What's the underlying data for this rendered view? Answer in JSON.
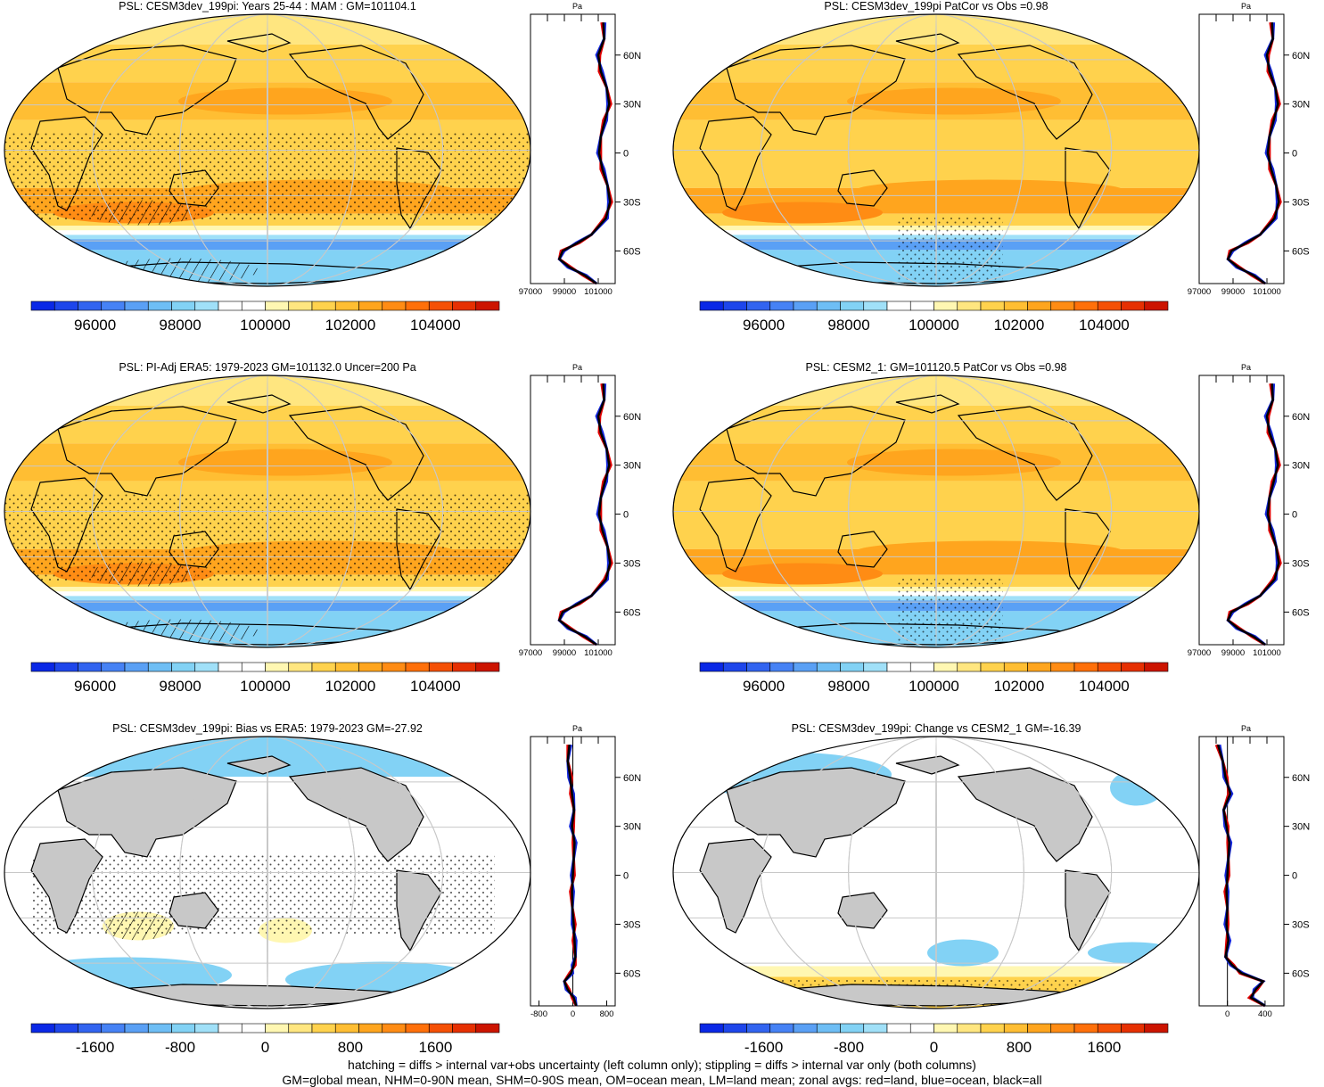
{
  "palette": {
    "pos": [
      "#fff7b2",
      "#ffe680",
      "#ffd24d",
      "#ffbe33",
      "#ffa51e",
      "#ff8c14",
      "#ff700a",
      "#f55005",
      "#e63002",
      "#cc1400"
    ],
    "neg": [
      "#0a28e6",
      "#1e46eb",
      "#3264f0",
      "#4682f5",
      "#5aa0f5",
      "#6ebef5",
      "#82d2f5",
      "#a0e0f8"
    ],
    "land": "#c8c8c8",
    "zonal_colors": {
      "land": "#e00000",
      "ocean": "#1428dc",
      "all": "#000000"
    }
  },
  "panels": [
    {
      "id": "model-mean",
      "title": "PSL: CESM3dev_199pi: Years 25-44 : MAM : GM=101104.1",
      "kind": "mean",
      "colorbar": {
        "min": 94500,
        "max": 105500,
        "labels": [
          "96000",
          "98000",
          "100000",
          "102000",
          "104000"
        ],
        "label_values": [
          96000,
          98000,
          100000,
          102000,
          104000
        ]
      },
      "zonal": {
        "ticks": [
          "97000",
          "99000",
          "101000"
        ],
        "tick_values": [
          97000,
          99000,
          101000
        ],
        "units": "Pa",
        "xlim": [
          97000,
          102000
        ]
      }
    },
    {
      "id": "model-patcor",
      "title": "PSL: CESM3dev_199pi PatCor vs Obs =0.98",
      "kind": "mean",
      "colorbar": {
        "min": 94500,
        "max": 105500,
        "labels": [
          "96000",
          "98000",
          "100000",
          "102000",
          "104000"
        ],
        "label_values": [
          96000,
          98000,
          100000,
          102000,
          104000
        ]
      },
      "zonal": {
        "ticks": [
          "97000",
          "99000",
          "101000"
        ],
        "tick_values": [
          97000,
          99000,
          101000
        ],
        "units": "Pa",
        "xlim": [
          97000,
          102000
        ]
      }
    },
    {
      "id": "obs-era5",
      "title": "PSL: PI-Adj ERA5: 1979-2023 GM=101132.0 Uncer=200 Pa",
      "kind": "mean",
      "colorbar": {
        "min": 94500,
        "max": 105500,
        "labels": [
          "96000",
          "98000",
          "100000",
          "102000",
          "104000"
        ],
        "label_values": [
          96000,
          98000,
          100000,
          102000,
          104000
        ]
      },
      "zonal": {
        "ticks": [
          "97000",
          "99000",
          "101000"
        ],
        "tick_values": [
          97000,
          99000,
          101000
        ],
        "units": "Pa",
        "xlim": [
          97000,
          102000
        ]
      }
    },
    {
      "id": "cesm2-1",
      "title": "PSL: CESM2_1: GM=101120.5 PatCor vs Obs =0.98",
      "kind": "mean",
      "colorbar": {
        "min": 94500,
        "max": 105500,
        "labels": [
          "96000",
          "98000",
          "100000",
          "102000",
          "104000"
        ],
        "label_values": [
          96000,
          98000,
          100000,
          102000,
          104000
        ]
      },
      "zonal": {
        "ticks": [
          "97000",
          "99000",
          "101000"
        ],
        "tick_values": [
          97000,
          99000,
          101000
        ],
        "units": "Pa",
        "xlim": [
          97000,
          102000
        ]
      }
    },
    {
      "id": "bias",
      "title": "PSL: CESM3dev_199pi: Bias vs ERA5: 1979-2023 GM=-27.92",
      "kind": "diff",
      "colorbar": {
        "min": -2200,
        "max": 2200,
        "labels": [
          "-1600",
          "-800",
          "0",
          "800",
          "1600"
        ],
        "label_values": [
          -1600,
          -800,
          0,
          800,
          1600
        ]
      },
      "zonal": {
        "ticks": [
          "-800",
          "0",
          "800"
        ],
        "tick_values": [
          -800,
          0,
          800
        ],
        "units": "Pa",
        "xlim": [
          -1000,
          1000
        ]
      }
    },
    {
      "id": "change",
      "title": "PSL: CESM3dev_199pi: Change vs CESM2_1 GM=-16.39",
      "kind": "diff",
      "colorbar": {
        "min": -2200,
        "max": 2200,
        "labels": [
          "-1600",
          "-800",
          "0",
          "800",
          "1600"
        ],
        "label_values": [
          -1600,
          -800,
          0,
          800,
          1600
        ]
      },
      "zonal": {
        "ticks": [
          "0",
          "400"
        ],
        "tick_values": [
          0,
          400
        ],
        "units": "Pa",
        "xlim": [
          -300,
          600
        ]
      }
    }
  ],
  "lat_labels": [
    "60N",
    "30N",
    "0",
    "30S",
    "60S"
  ],
  "chart_data": {
    "type": "heatmap",
    "variable": "PSL",
    "season": "MAM",
    "maps": [
      {
        "title": "PSL: CESM3dev_199pi: Years 25-44 : MAM : GM=101104.1",
        "global_mean": 101104.1
      },
      {
        "title": "PSL: CESM3dev_199pi PatCor vs Obs =0.98",
        "pattern_correlation": 0.98
      },
      {
        "title": "PSL: PI-Adj ERA5: 1979-2023 GM=101132.0 Uncer=200 Pa",
        "global_mean": 101132.0,
        "uncertainty_pa": 200
      },
      {
        "title": "PSL: CESM2_1: GM=101120.5 PatCor vs Obs =0.98",
        "global_mean": 101120.5,
        "pattern_correlation": 0.98
      },
      {
        "title": "PSL: CESM3dev_199pi: Bias vs ERA5: 1979-2023 GM=-27.92",
        "global_mean": -27.92
      },
      {
        "title": "PSL: CESM3dev_199pi: Change vs CESM2_1 GM=-16.39",
        "global_mean": -16.39
      }
    ],
    "zonal_mean_lat": [
      80,
      70,
      60,
      50,
      40,
      30,
      20,
      10,
      0,
      -10,
      -20,
      -30,
      -40,
      -50,
      -55,
      -60,
      -65,
      -70,
      -75,
      -80
    ],
    "zonal_mean_all": [
      101300,
      101350,
      101000,
      101150,
      101500,
      101650,
      101400,
      101150,
      101050,
      101250,
      101550,
      101700,
      101450,
      100600,
      99800,
      98900,
      98700,
      99300,
      100200,
      100900
    ],
    "zonal_bias_all": [
      -80,
      -120,
      -60,
      -20,
      30,
      -20,
      40,
      20,
      0,
      -20,
      -10,
      20,
      40,
      60,
      20,
      -40,
      -200,
      -120,
      20,
      80
    ],
    "zonal_change_all": [
      -100,
      -50,
      -20,
      30,
      -40,
      -10,
      20,
      10,
      0,
      -10,
      0,
      -10,
      10,
      -20,
      50,
      150,
      380,
      300,
      250,
      400
    ]
  },
  "caption": {
    "line1": "hatching = diffs > internal var+obs uncertainty (left column only); stippling = diffs > internal var only (both columns)",
    "line2": "GM=global mean, NHM=0-90N mean, SHM=0-90S mean, OM=ocean mean, LM=land mean; zonal avgs: red=land, blue=ocean, black=all"
  }
}
